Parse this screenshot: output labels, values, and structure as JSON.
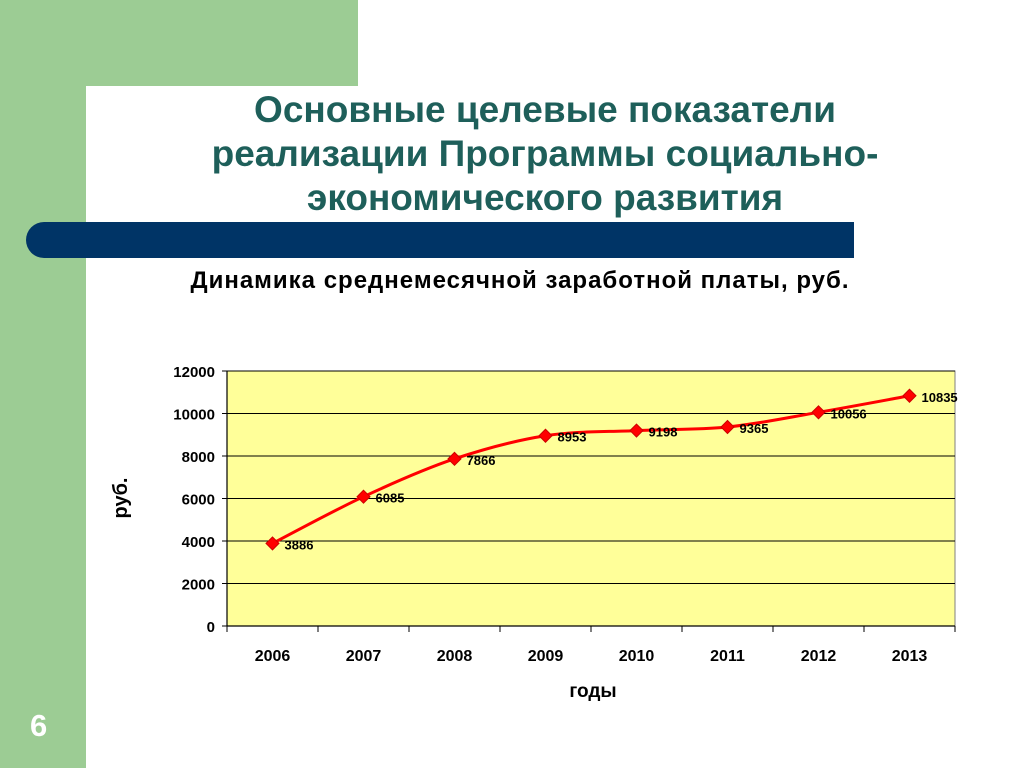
{
  "slide": {
    "title": "Основные целевые показатели реализации Программы социально-экономического развития",
    "page_number": "6",
    "colors": {
      "title": "#1e5f5a",
      "green_panel": "#9ccc94",
      "blue_bar": "#003466",
      "plot_bg": "#ffff99",
      "series_line": "#ff0000"
    }
  },
  "chart_data": {
    "type": "line",
    "title": "Динамика среднемесячной заработной платы, руб.",
    "xlabel": "годы",
    "ylabel": "руб.",
    "ylim": [
      0,
      12000
    ],
    "yticks": [
      0,
      2000,
      4000,
      6000,
      8000,
      10000,
      12000
    ],
    "categories": [
      "2006",
      "2007",
      "2008",
      "2009",
      "2010",
      "2011",
      "2012",
      "2013"
    ],
    "series": [
      {
        "values": [
          3886,
          6085,
          7866,
          8953,
          9198,
          9365,
          10056,
          10835
        ]
      }
    ],
    "data_labels": true,
    "grid": "horizontal",
    "legend": "none"
  }
}
